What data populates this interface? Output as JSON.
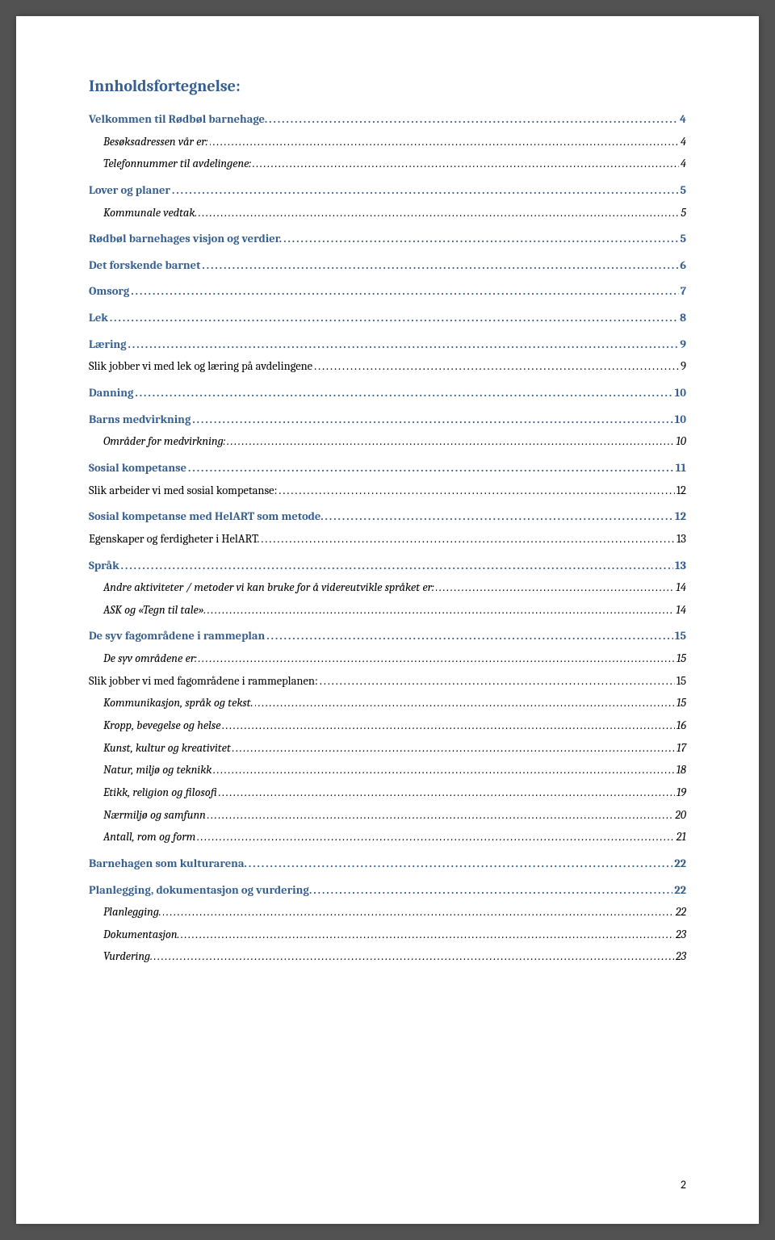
{
  "title": "Innholdsfortegnelse:",
  "pageNumber": "2",
  "entries": [
    {
      "label": "Velkommen til Rødbøl barnehage.",
      "page": "4",
      "level": 1
    },
    {
      "label": "Besøksadressen vår er:",
      "page": "4",
      "level": 2
    },
    {
      "label": "Telefonnummer til avdelingene:",
      "page": "4",
      "level": 2
    },
    {
      "label": "Lover og planer",
      "page": "5",
      "level": 1
    },
    {
      "label": "Kommunale vedtak.",
      "page": "5",
      "level": 2
    },
    {
      "label": "Rødbøl barnehages visjon og verdier.",
      "page": "5",
      "level": 1
    },
    {
      "label": "Det forskende barnet",
      "page": "6",
      "level": 1
    },
    {
      "label": "Omsorg",
      "page": "7",
      "level": 1
    },
    {
      "label": "Lek",
      "page": "8",
      "level": 1
    },
    {
      "label": "Læring",
      "page": "9",
      "level": 1
    },
    {
      "label": "Slik jobber vi med lek og læring på avdelingene",
      "page": "9",
      "level": 3
    },
    {
      "label": "Danning",
      "page": "10",
      "level": 1
    },
    {
      "label": "Barns medvirkning",
      "page": "10",
      "level": 1
    },
    {
      "label": "Områder for medvirkning:",
      "page": "10",
      "level": 2
    },
    {
      "label": "Sosial kompetanse",
      "page": "11",
      "level": 1
    },
    {
      "label": "Slik arbeider vi med sosial kompetanse:",
      "page": "12",
      "level": 3
    },
    {
      "label": "Sosial kompetanse med HelART som metode.",
      "page": "12",
      "level": 1
    },
    {
      "label": "Egenskaper og ferdigheter i HelART.",
      "page": "13",
      "level": 3
    },
    {
      "label": "Språk",
      "page": "13",
      "level": 1
    },
    {
      "label": "Andre aktiviteter / metoder vi kan bruke for å videreutvikle språket er:",
      "page": "14",
      "level": 2
    },
    {
      "label": "ASK og «Tegn til tale».",
      "page": "14",
      "level": 2
    },
    {
      "label": "De syv fagområdene i rammeplan",
      "page": "15",
      "level": 1
    },
    {
      "label": "De syv områdene er:",
      "page": "15",
      "level": 2
    },
    {
      "label": "Slik jobber vi med fagområdene i rammeplanen:",
      "page": "15",
      "level": 3
    },
    {
      "label": "Kommunikasjon, språk og tekst.",
      "page": "15",
      "level": 2
    },
    {
      "label": "Kropp, bevegelse og helse",
      "page": "16",
      "level": 2
    },
    {
      "label": "Kunst, kultur og kreativitet",
      "page": "17",
      "level": 2
    },
    {
      "label": "Natur, miljø og teknikk",
      "page": "18",
      "level": 2
    },
    {
      "label": "Etikk, religion og filosofi",
      "page": "19",
      "level": 2
    },
    {
      "label": "Nærmiljø og samfunn",
      "page": "20",
      "level": 2
    },
    {
      "label": "Antall, rom og form",
      "page": "21",
      "level": 2
    },
    {
      "label": "Barnehagen som kulturarena.",
      "page": "22",
      "level": 1
    },
    {
      "label": "Planlegging, dokumentasjon og vurdering.",
      "page": "22",
      "level": 1
    },
    {
      "label": "Planlegging.",
      "page": "22",
      "level": 2
    },
    {
      "label": "Dokumentasjon.",
      "page": "23",
      "level": 2
    },
    {
      "label": "Vurdering.",
      "page": "23",
      "level": 2
    }
  ]
}
